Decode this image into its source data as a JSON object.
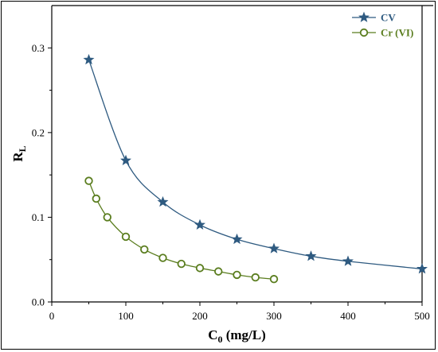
{
  "chart_data": {
    "type": "line",
    "xlabel": "C",
    "xlabel_sub": "0",
    "xlabel_unit": " (mg/L)",
    "ylabel": "R",
    "ylabel_sub": "L",
    "xlim": [
      0,
      500
    ],
    "ylim": [
      0,
      0.35
    ],
    "x_ticks": [
      0,
      100,
      200,
      300,
      400,
      500
    ],
    "y_ticks": [
      0.0,
      0.1,
      0.2,
      0.3
    ],
    "y_tick_labels": [
      "0.0",
      "0.1",
      "0.2",
      "0.3"
    ],
    "grid": false,
    "legend_position": "top-right",
    "series": [
      {
        "name": "CV",
        "color": "#2e5a80",
        "marker": "star",
        "x": [
          50,
          100,
          150,
          200,
          250,
          300,
          350,
          400,
          500
        ],
        "y": [
          0.286,
          0.167,
          0.118,
          0.091,
          0.074,
          0.063,
          0.054,
          0.048,
          0.039
        ]
      },
      {
        "name": "Cr (VI)",
        "color": "#5a7d1e",
        "marker": "circle",
        "x": [
          50,
          60,
          75,
          100,
          125,
          150,
          175,
          200,
          225,
          250,
          275,
          300
        ],
        "y": [
          0.143,
          0.122,
          0.1,
          0.077,
          0.062,
          0.052,
          0.045,
          0.04,
          0.036,
          0.032,
          0.029,
          0.027
        ]
      }
    ]
  }
}
